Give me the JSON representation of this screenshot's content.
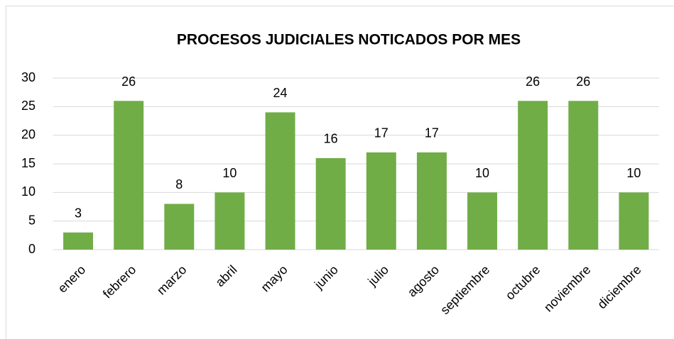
{
  "chart_data": {
    "type": "bar",
    "title": "PROCESOS JUDICIALES NOTICADOS POR MES",
    "categories": [
      "enero",
      "febrero",
      "marzo",
      "abril",
      "mayo",
      "junio",
      "julio",
      "agosto",
      "septiembre",
      "octubre",
      "noviembre",
      "diciembre"
    ],
    "values": [
      3,
      26,
      8,
      10,
      24,
      16,
      17,
      17,
      10,
      26,
      26,
      10
    ],
    "color": "#70ad47",
    "ylim": [
      0,
      30
    ],
    "yticks": [
      0,
      5,
      10,
      15,
      20,
      25,
      30
    ],
    "grid": true
  }
}
